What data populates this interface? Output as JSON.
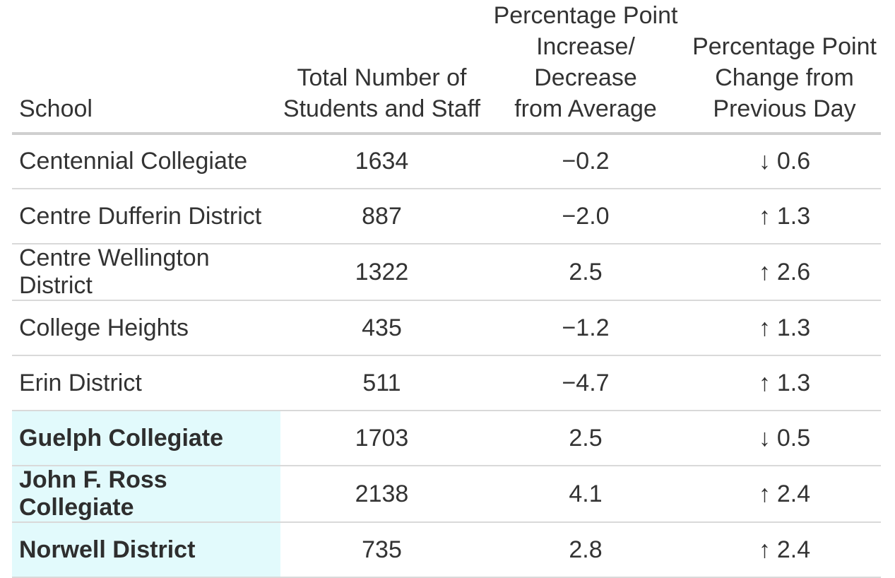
{
  "chart_data": {
    "type": "table",
    "columns": [
      {
        "label": "School"
      },
      {
        "label": "Total Number of\nStudents and Staff"
      },
      {
        "label": "Percentage Point\nIncrease/ Decrease\nfrom Average"
      },
      {
        "label": "Percentage Point\nChange from\nPrevious Day"
      }
    ],
    "rows": [
      {
        "school": "Centennial Collegiate",
        "total": "1634",
        "avg_diff": "−0.2",
        "day_change_arrow": "↓",
        "day_change_value": "0.6",
        "highlighted": false
      },
      {
        "school": "Centre Dufferin District",
        "total": "887",
        "avg_diff": "−2.0",
        "day_change_arrow": "↑",
        "day_change_value": "1.3",
        "highlighted": false
      },
      {
        "school": "Centre Wellington District",
        "total": "1322",
        "avg_diff": "2.5",
        "day_change_arrow": "↑",
        "day_change_value": "2.6",
        "highlighted": false
      },
      {
        "school": "College Heights",
        "total": "435",
        "avg_diff": "−1.2",
        "day_change_arrow": "↑",
        "day_change_value": "1.3",
        "highlighted": false
      },
      {
        "school": "Erin District",
        "total": "511",
        "avg_diff": "−4.7",
        "day_change_arrow": "↑",
        "day_change_value": "1.3",
        "highlighted": false
      },
      {
        "school": "Guelph Collegiate",
        "total": "1703",
        "avg_diff": "2.5",
        "day_change_arrow": "↓",
        "day_change_value": "0.5",
        "highlighted": true
      },
      {
        "school": "John F. Ross Collegiate",
        "total": "2138",
        "avg_diff": "4.1",
        "day_change_arrow": "↑",
        "day_change_value": "2.4",
        "highlighted": true
      },
      {
        "school": "Norwell District",
        "total": "735",
        "avg_diff": "2.8",
        "day_change_arrow": "↑",
        "day_change_value": "2.4",
        "highlighted": true
      }
    ]
  },
  "colors": {
    "text": "#333333",
    "highlight": "#e2fafc",
    "header-line": "#cfcfcf",
    "row-line": "#d9d9d9"
  }
}
